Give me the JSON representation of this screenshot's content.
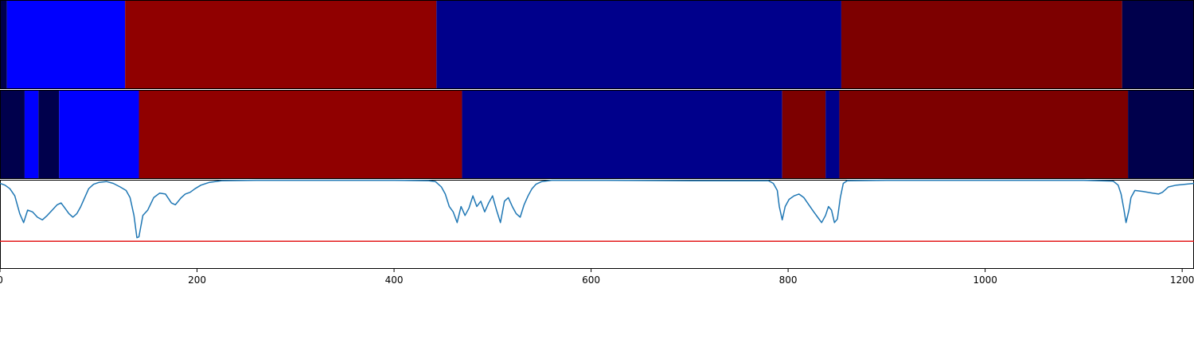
{
  "chart_data": {
    "type": "segmentation-comparison",
    "xlim": [
      0,
      1212
    ],
    "x_ticks": [
      {
        "value": 0,
        "label": "0"
      },
      {
        "value": 200,
        "label": "200"
      },
      {
        "value": 400,
        "label": "400"
      },
      {
        "value": 600,
        "label": "600"
      },
      {
        "value": 800,
        "label": "800"
      },
      {
        "value": 1000,
        "label": "1000"
      },
      {
        "value": 1200,
        "label": "1200"
      }
    ],
    "panels": [
      {
        "segments": [
          {
            "start": 0,
            "end": 7,
            "color": "#00004c"
          },
          {
            "start": 7,
            "end": 127,
            "color": "#0000ff"
          },
          {
            "start": 127,
            "end": 443,
            "color": "#900000"
          },
          {
            "start": 443,
            "end": 854,
            "color": "#00008b"
          },
          {
            "start": 854,
            "end": 1139,
            "color": "#7d0000"
          },
          {
            "start": 1139,
            "end": 1212,
            "color": "#00004c"
          }
        ]
      },
      {
        "segments": [
          {
            "start": 0,
            "end": 25,
            "color": "#00004c"
          },
          {
            "start": 25,
            "end": 39,
            "color": "#0000ff"
          },
          {
            "start": 39,
            "end": 60,
            "color": "#00004c"
          },
          {
            "start": 60,
            "end": 141,
            "color": "#0000ff"
          },
          {
            "start": 141,
            "end": 469,
            "color": "#900000"
          },
          {
            "start": 469,
            "end": 794,
            "color": "#00008b"
          },
          {
            "start": 794,
            "end": 838,
            "color": "#7d0000"
          },
          {
            "start": 838,
            "end": 852,
            "color": "#00008b"
          },
          {
            "start": 852,
            "end": 1145,
            "color": "#7d0000"
          },
          {
            "start": 1145,
            "end": 1212,
            "color": "#00004c"
          }
        ]
      }
    ],
    "signal": {
      "ylim": [
        0,
        1
      ],
      "threshold": 0.31,
      "threshold_color": "#e31a1c",
      "line_color": "#1f77b4",
      "points": [
        [
          0,
          0.96
        ],
        [
          5,
          0.94
        ],
        [
          10,
          0.9
        ],
        [
          15,
          0.82
        ],
        [
          20,
          0.62
        ],
        [
          24,
          0.52
        ],
        [
          28,
          0.66
        ],
        [
          33,
          0.64
        ],
        [
          38,
          0.58
        ],
        [
          43,
          0.55
        ],
        [
          48,
          0.6
        ],
        [
          53,
          0.66
        ],
        [
          58,
          0.72
        ],
        [
          62,
          0.74
        ],
        [
          66,
          0.68
        ],
        [
          70,
          0.62
        ],
        [
          74,
          0.58
        ],
        [
          78,
          0.62
        ],
        [
          82,
          0.7
        ],
        [
          86,
          0.8
        ],
        [
          90,
          0.9
        ],
        [
          95,
          0.95
        ],
        [
          100,
          0.97
        ],
        [
          108,
          0.98
        ],
        [
          115,
          0.96
        ],
        [
          122,
          0.92
        ],
        [
          128,
          0.88
        ],
        [
          132,
          0.8
        ],
        [
          136,
          0.6
        ],
        [
          139,
          0.35
        ],
        [
          141,
          0.36
        ],
        [
          145,
          0.6
        ],
        [
          150,
          0.66
        ],
        [
          156,
          0.8
        ],
        [
          162,
          0.85
        ],
        [
          168,
          0.84
        ],
        [
          174,
          0.74
        ],
        [
          178,
          0.72
        ],
        [
          184,
          0.8
        ],
        [
          188,
          0.84
        ],
        [
          193,
          0.86
        ],
        [
          198,
          0.9
        ],
        [
          204,
          0.94
        ],
        [
          212,
          0.97
        ],
        [
          225,
          0.99
        ],
        [
          260,
          0.995
        ],
        [
          300,
          0.995
        ],
        [
          400,
          0.995
        ],
        [
          435,
          0.99
        ],
        [
          442,
          0.98
        ],
        [
          448,
          0.92
        ],
        [
          452,
          0.84
        ],
        [
          456,
          0.7
        ],
        [
          460,
          0.64
        ],
        [
          464,
          0.52
        ],
        [
          468,
          0.7
        ],
        [
          472,
          0.6
        ],
        [
          476,
          0.68
        ],
        [
          480,
          0.82
        ],
        [
          484,
          0.7
        ],
        [
          488,
          0.76
        ],
        [
          492,
          0.64
        ],
        [
          496,
          0.74
        ],
        [
          500,
          0.82
        ],
        [
          504,
          0.66
        ],
        [
          508,
          0.52
        ],
        [
          512,
          0.76
        ],
        [
          516,
          0.8
        ],
        [
          520,
          0.7
        ],
        [
          524,
          0.62
        ],
        [
          528,
          0.58
        ],
        [
          532,
          0.72
        ],
        [
          536,
          0.82
        ],
        [
          540,
          0.9
        ],
        [
          544,
          0.95
        ],
        [
          550,
          0.98
        ],
        [
          560,
          0.995
        ],
        [
          600,
          0.995
        ],
        [
          700,
          0.99
        ],
        [
          780,
          0.99
        ],
        [
          785,
          0.96
        ],
        [
          789,
          0.88
        ],
        [
          791,
          0.7
        ],
        [
          794,
          0.55
        ],
        [
          797,
          0.7
        ],
        [
          801,
          0.78
        ],
        [
          806,
          0.82
        ],
        [
          811,
          0.84
        ],
        [
          816,
          0.8
        ],
        [
          821,
          0.72
        ],
        [
          826,
          0.64
        ],
        [
          830,
          0.58
        ],
        [
          834,
          0.52
        ],
        [
          838,
          0.6
        ],
        [
          841,
          0.7
        ],
        [
          844,
          0.66
        ],
        [
          847,
          0.52
        ],
        [
          850,
          0.56
        ],
        [
          853,
          0.8
        ],
        [
          856,
          0.96
        ],
        [
          860,
          0.99
        ],
        [
          900,
          0.995
        ],
        [
          1000,
          0.995
        ],
        [
          1100,
          0.995
        ],
        [
          1130,
          0.985
        ],
        [
          1135,
          0.94
        ],
        [
          1138,
          0.84
        ],
        [
          1141,
          0.66
        ],
        [
          1143,
          0.52
        ],
        [
          1146,
          0.66
        ],
        [
          1148,
          0.8
        ],
        [
          1152,
          0.88
        ],
        [
          1160,
          0.87
        ],
        [
          1170,
          0.85
        ],
        [
          1176,
          0.84
        ],
        [
          1180,
          0.86
        ],
        [
          1186,
          0.92
        ],
        [
          1194,
          0.94
        ],
        [
          1203,
          0.95
        ],
        [
          1212,
          0.96
        ]
      ]
    },
    "grid": false,
    "legend": "none"
  }
}
